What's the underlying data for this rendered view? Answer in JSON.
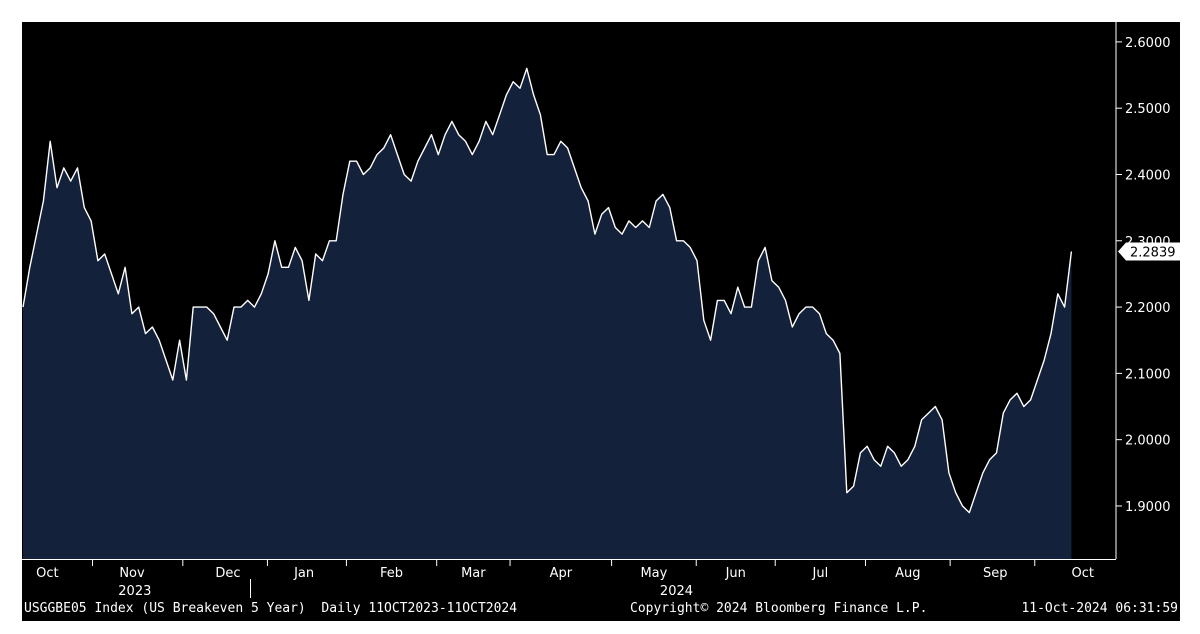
{
  "footer": {
    "left": "USGGBE05 Index (US Breakeven 5 Year)  Daily 11OCT2023-11OCT2024",
    "center": "Copyright© 2024 Bloomberg Finance L.P.",
    "right": "11-Oct-2024 06:31:59"
  },
  "colors": {
    "plot_background": "#000000",
    "area_fill": "#14213b",
    "line": "#ffffff",
    "text": "#ffffff"
  },
  "chart_data": {
    "type": "area",
    "title": "",
    "xlabel": "",
    "ylabel": "",
    "ylim": [
      1.82,
      2.63
    ],
    "y_axis_side": "right",
    "grid": false,
    "y_ticks": [
      "2.6000",
      "2.5000",
      "2.4000",
      "2.3000",
      "2.2000",
      "2.1000",
      "2.0000",
      "1.9000"
    ],
    "y_tick_values": [
      2.6,
      2.5,
      2.4,
      2.3,
      2.2,
      2.1,
      2.0,
      1.9
    ],
    "month_labels": [
      "Oct",
      "Nov",
      "Dec",
      "Jan",
      "Feb",
      "Mar",
      "Apr",
      "May",
      "Jun",
      "Jul",
      "Aug",
      "Sep",
      "Oct"
    ],
    "month_label_index": [
      4.5,
      19.5,
      36.5,
      50,
      65.5,
      80,
      95.5,
      112,
      126.5,
      141.5,
      157,
      172.5,
      188
    ],
    "month_boundary_index": [
      12.5,
      28.5,
      43.5,
      57.5,
      73.5,
      86.5,
      104.5,
      119.5,
      133.5,
      149.5,
      164.5,
      179.5
    ],
    "year_labels": [
      "2023",
      "2024"
    ],
    "year_label_index": [
      20,
      116
    ],
    "year_boundary_index": 40.5,
    "last_value_label": "2.2839",
    "last_value": 2.2839,
    "x_index_range": [
      0,
      190
    ],
    "series": [
      {
        "values": [
          2.2,
          2.26,
          2.31,
          2.36,
          2.45,
          2.38,
          2.41,
          2.39,
          2.41,
          2.35,
          2.33,
          2.27,
          2.28,
          2.25,
          2.22,
          2.26,
          2.19,
          2.2,
          2.16,
          2.17,
          2.15,
          2.12,
          2.09,
          2.15,
          2.09,
          2.2,
          2.2,
          2.2,
          2.19,
          2.17,
          2.15,
          2.2,
          2.2,
          2.21,
          2.2,
          2.22,
          2.25,
          2.3,
          2.26,
          2.26,
          2.29,
          2.27,
          2.21,
          2.28,
          2.27,
          2.3,
          2.3,
          2.37,
          2.42,
          2.42,
          2.4,
          2.41,
          2.43,
          2.44,
          2.46,
          2.43,
          2.4,
          2.39,
          2.42,
          2.44,
          2.46,
          2.43,
          2.46,
          2.48,
          2.46,
          2.45,
          2.43,
          2.45,
          2.48,
          2.46,
          2.49,
          2.52,
          2.54,
          2.53,
          2.56,
          2.52,
          2.49,
          2.43,
          2.43,
          2.45,
          2.44,
          2.41,
          2.38,
          2.36,
          2.31,
          2.34,
          2.35,
          2.32,
          2.31,
          2.33,
          2.32,
          2.33,
          2.32,
          2.36,
          2.37,
          2.35,
          2.3,
          2.3,
          2.29,
          2.27,
          2.18,
          2.15,
          2.21,
          2.21,
          2.19,
          2.23,
          2.2,
          2.2,
          2.27,
          2.29,
          2.24,
          2.23,
          2.21,
          2.17,
          2.19,
          2.2,
          2.2,
          2.19,
          2.16,
          2.15,
          2.13,
          1.92,
          1.93,
          1.98,
          1.99,
          1.97,
          1.96,
          1.99,
          1.98,
          1.96,
          1.97,
          1.99,
          2.03,
          2.04,
          2.05,
          2.03,
          1.95,
          1.92,
          1.9,
          1.89,
          1.92,
          1.95,
          1.97,
          1.98,
          2.04,
          2.06,
          2.07,
          2.05,
          2.06,
          2.09,
          2.12,
          2.16,
          2.22,
          2.2,
          2.2839
        ]
      }
    ]
  }
}
